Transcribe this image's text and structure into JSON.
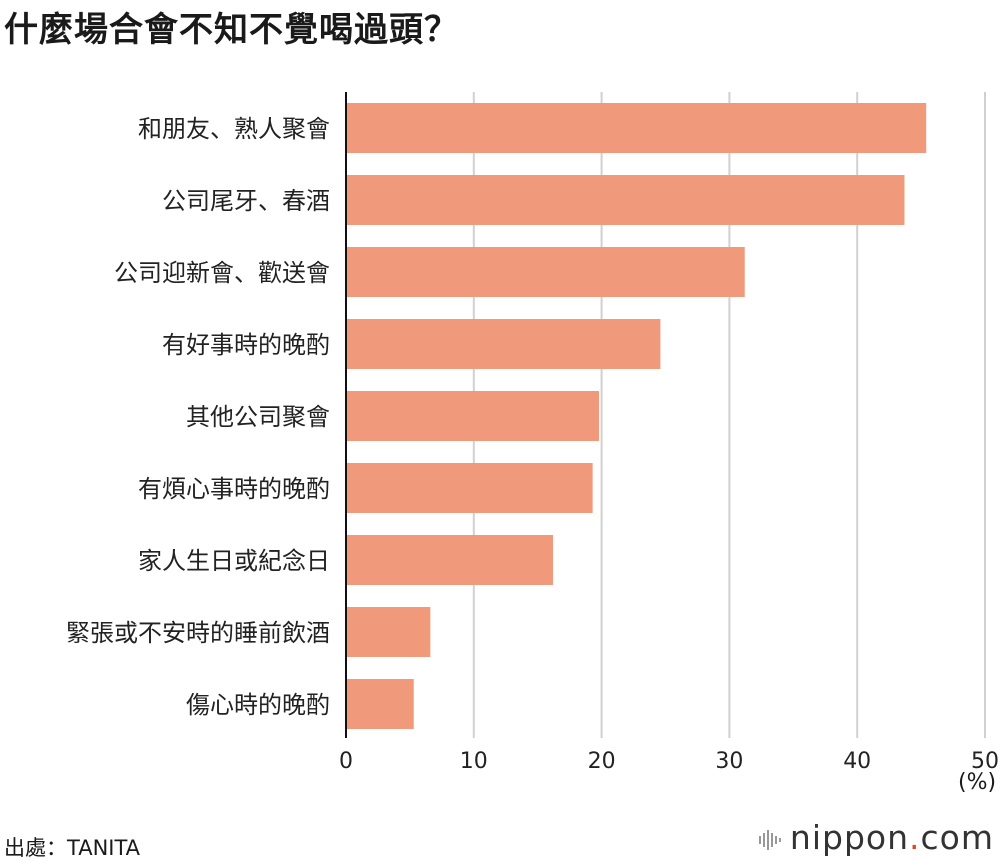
{
  "title": "什麼場合會不知不覺喝過頭？",
  "source": "出處：TANITA",
  "brand": {
    "name": "nippon",
    "dot": ".",
    "suffix": "com"
  },
  "unit": "(%)",
  "colors": {
    "bar": "#f09a7b",
    "grid": "#d0d0d0",
    "axis": "#111111",
    "brand_dot": "#e0471f"
  },
  "chart_data": {
    "type": "bar",
    "orientation": "horizontal",
    "title": "什麼場合會不知不覺喝過頭？",
    "categories": [
      "和朋友、熟人聚會",
      "公司尾牙、春酒",
      "公司迎新會、歡送會",
      "有好事時的晚酌",
      "其他公司聚會",
      "有煩心事時的晚酌",
      "家人生日或紀念日",
      "緊張或不安時的睡前飲酒",
      "傷心時的晚酌"
    ],
    "values": [
      45.4,
      43.7,
      31.2,
      24.6,
      19.8,
      19.3,
      16.2,
      6.6,
      5.3
    ],
    "xlim": [
      0,
      50
    ],
    "xticks": [
      0,
      10,
      20,
      30,
      40,
      50
    ],
    "xlabel": "(%)",
    "grid": true
  }
}
